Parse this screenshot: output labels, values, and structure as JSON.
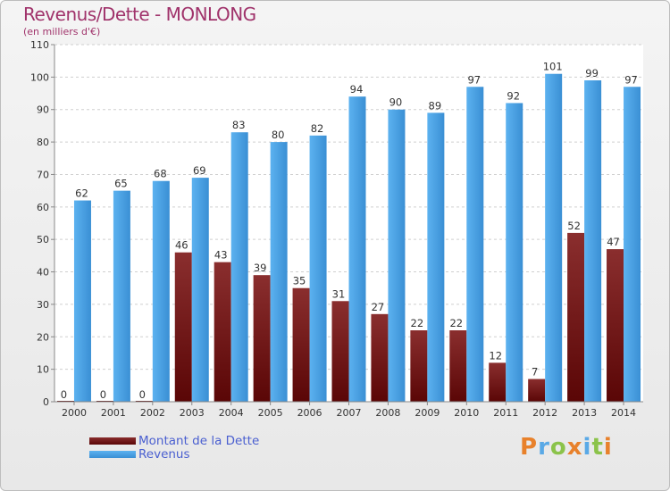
{
  "header": {
    "title": "Revenus/Dette - MONLONG",
    "subtitle": "(en milliers d'€)"
  },
  "colors": {
    "dette": "#7a1b1b",
    "revenus": "#4a9fe2",
    "axis_text": "#333333",
    "title": "#a0336b",
    "legend_text": "#4a5fd0"
  },
  "chart_data": {
    "type": "bar",
    "title": "Revenus/Dette - MONLONG",
    "subtitle": "(en milliers d'€)",
    "categories": [
      "2000",
      "2001",
      "2002",
      "2003",
      "2004",
      "2005",
      "2006",
      "2007",
      "2008",
      "2009",
      "2010",
      "2011",
      "2012",
      "2013",
      "2014"
    ],
    "series": [
      {
        "name": "Montant de la Dette",
        "values": [
          0,
          0,
          0,
          46,
          43,
          39,
          35,
          31,
          27,
          22,
          22,
          12,
          7,
          52,
          47
        ]
      },
      {
        "name": "Revenus",
        "values": [
          62,
          65,
          68,
          69,
          83,
          80,
          82,
          94,
          90,
          89,
          97,
          92,
          101,
          99,
          97
        ]
      }
    ],
    "ylim": [
      0,
      110
    ],
    "yticks": [
      0,
      10,
      20,
      30,
      40,
      50,
      60,
      70,
      80,
      90,
      100,
      110
    ],
    "grid": true,
    "legend_position": "bottom-left"
  },
  "legend": {
    "items": [
      {
        "label": "Montant de la Dette"
      },
      {
        "label": "Revenus"
      }
    ]
  },
  "logo": {
    "text": "Proxiti",
    "letter_colors": [
      "#e8812b",
      "#5aa9e6",
      "#8bc34a",
      "#e8812b",
      "#5aa9e6",
      "#8bc34a",
      "#e8812b"
    ]
  }
}
